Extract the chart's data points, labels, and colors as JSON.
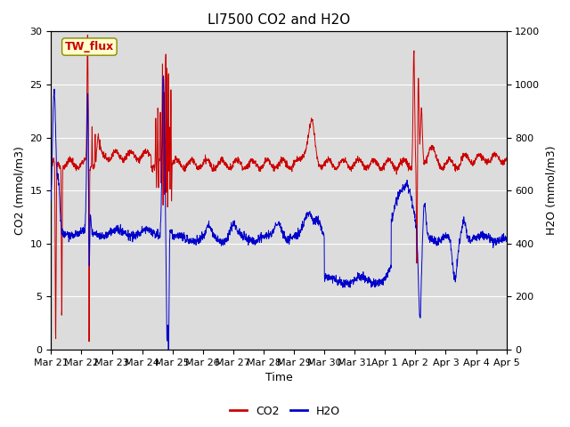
{
  "title": "LI7500 CO2 and H2O",
  "xlabel": "Time",
  "ylabel_left": "CO2 (mmol/m3)",
  "ylabel_right": "H2O (mmol/m3)",
  "ylim_left": [
    0,
    30
  ],
  "ylim_right": [
    0,
    1200
  ],
  "yticks_left": [
    0,
    5,
    10,
    15,
    20,
    25,
    30
  ],
  "yticks_right": [
    0,
    200,
    400,
    600,
    800,
    1000,
    1200
  ],
  "xticklabels": [
    "Mar 21",
    "Mar 22",
    "Mar 23",
    "Mar 24",
    "Mar 25",
    "Mar 26",
    "Mar 27",
    "Mar 28",
    "Mar 29",
    "Mar 30",
    "Mar 31",
    "Apr 1",
    "Apr 2",
    "Apr 3",
    "Apr 4",
    "Apr 5"
  ],
  "co2_color": "#cc0000",
  "h2o_color": "#0000cc",
  "plot_bg_color": "#dcdcdc",
  "annotation_text": "TW_flux",
  "annotation_bg": "#ffffcc",
  "annotation_border": "#888800",
  "title_fontsize": 11,
  "axis_label_fontsize": 9,
  "tick_fontsize": 8,
  "n_days": 15
}
